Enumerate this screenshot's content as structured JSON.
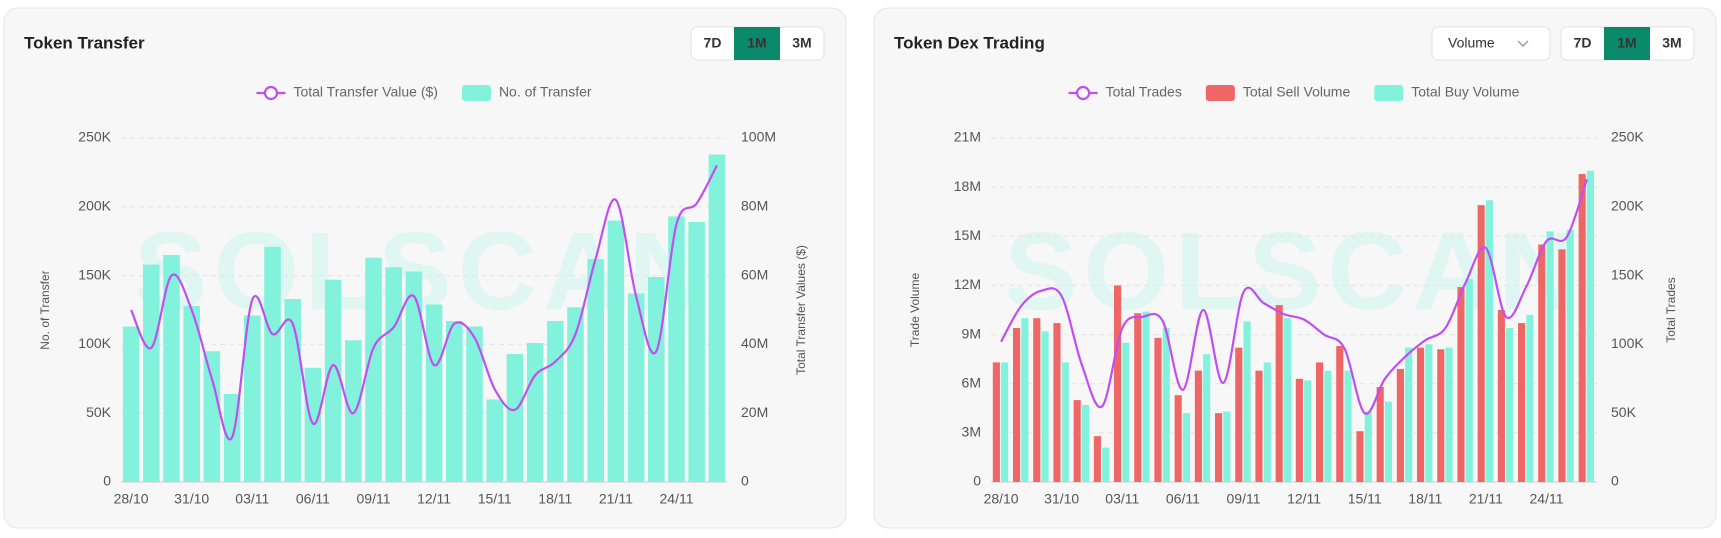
{
  "chart_data": [
    {
      "type": "bar",
      "title": "Token Transfer",
      "categories": [
        "28/10",
        null,
        null,
        "31/10",
        null,
        null,
        "03/11",
        null,
        null,
        "06/11",
        null,
        null,
        "09/11",
        null,
        null,
        "12/11",
        null,
        null,
        "15/11",
        null,
        null,
        "18/11",
        null,
        null,
        "21/11",
        null,
        null,
        "24/11",
        null,
        null
      ],
      "series": [
        {
          "name": "Total Transfer Value ($)",
          "type": "line",
          "axis": "y2",
          "color": "#c14ff0",
          "values": [
            50000000,
            39000000,
            60000000,
            50000000,
            30000000,
            13000000,
            53000000,
            43000000,
            46000000,
            17000000,
            34000000,
            20000000,
            39000000,
            45000000,
            54000000,
            34000000,
            46000000,
            42000000,
            27000000,
            21000000,
            31000000,
            35000000,
            43000000,
            65000000,
            82000000,
            54000000,
            38000000,
            75000000,
            81000000,
            92000000
          ]
        },
        {
          "name": "No. of Transfer",
          "type": "bar",
          "color": "#82f2dc",
          "values": [
            113000,
            158000,
            165000,
            128000,
            95000,
            64000,
            121000,
            171000,
            133000,
            83000,
            147000,
            103000,
            163000,
            156000,
            153000,
            129000,
            117000,
            113000,
            60000,
            93000,
            101000,
            117000,
            127000,
            162000,
            190000,
            137000,
            149000,
            193000,
            189000,
            238000
          ]
        }
      ],
      "ylabel": "No. of Transfer",
      "y2label": "Total Transfer Values ($)",
      "ylim": [
        0,
        250000
      ],
      "yticks": [
        0,
        {
          "value": 50000,
          "label": "50K"
        },
        {
          "value": 100000,
          "label": "100K"
        },
        {
          "value": 150000,
          "label": "150K"
        },
        {
          "value": 200000,
          "label": "200K"
        },
        {
          "value": 250000,
          "label": "250K"
        }
      ],
      "y2lim": [
        0,
        100000000
      ],
      "y2ticks": [
        0,
        {
          "value": 20000000,
          "label": "20M"
        },
        {
          "value": 40000000,
          "label": "40M"
        },
        {
          "value": 60000000,
          "label": "60M"
        },
        {
          "value": 80000000,
          "label": "80M"
        },
        {
          "value": 100000000,
          "label": "100M"
        }
      ],
      "grid": true,
      "legend": "top"
    },
    {
      "type": "bar",
      "title": "Token Dex Trading",
      "categories": [
        "28/10",
        null,
        null,
        "31/10",
        null,
        null,
        "03/11",
        null,
        null,
        "06/11",
        null,
        null,
        "09/11",
        null,
        null,
        "12/11",
        null,
        null,
        "15/11",
        null,
        null,
        "18/11",
        null,
        null,
        "21/11",
        null,
        null,
        "24/11",
        null,
        null
      ],
      "series": [
        {
          "name": "Total Trades",
          "type": "line",
          "axis": "y2",
          "color": "#c14ff0",
          "values": [
            102000,
            128000,
            139000,
            135000,
            85000,
            55000,
            112000,
            120000,
            117000,
            67000,
            125000,
            72000,
            138000,
            130000,
            122000,
            118000,
            107000,
            97000,
            50000,
            75000,
            91000,
            103000,
            112000,
            145000,
            170000,
            120000,
            142000,
            175000,
            178000,
            220000
          ]
        },
        {
          "name": "Total Sell Volume",
          "type": "bar",
          "color": "#ee6666",
          "values": [
            7300000,
            9400000,
            10000000,
            9700000,
            5000000,
            2800000,
            12000000,
            10300000,
            8800000,
            5300000,
            6800000,
            4200000,
            8200000,
            6800000,
            10800000,
            6300000,
            7300000,
            8300000,
            3100000,
            5800000,
            6900000,
            8200000,
            8100000,
            11900000,
            16900000,
            10500000,
            9700000,
            14500000,
            14200000,
            18800000
          ]
        },
        {
          "name": "Total Buy Volume",
          "type": "bar",
          "color": "#82f2dc",
          "values": [
            7300000,
            10000000,
            9200000,
            7300000,
            4700000,
            2100000,
            8500000,
            10400000,
            9400000,
            4200000,
            7800000,
            4300000,
            9800000,
            7300000,
            10000000,
            6200000,
            6800000,
            6800000,
            4300000,
            4900000,
            8200000,
            8400000,
            8200000,
            12400000,
            17200000,
            9400000,
            10200000,
            15300000,
            15400000,
            19000000
          ]
        }
      ],
      "ylabel": "Trade Volume",
      "y2label": "Total Trades",
      "ylim": [
        0,
        21000000
      ],
      "yticks": [
        0,
        {
          "value": 3000000,
          "label": "3M"
        },
        {
          "value": 6000000,
          "label": "6M"
        },
        {
          "value": 9000000,
          "label": "9M"
        },
        {
          "value": 12000000,
          "label": "12M"
        },
        {
          "value": 15000000,
          "label": "15M"
        },
        {
          "value": 18000000,
          "label": "18M"
        },
        {
          "value": 21000000,
          "label": "21M"
        }
      ],
      "y2lim": [
        0,
        250000
      ],
      "y2ticks": [
        0,
        {
          "value": 50000,
          "label": "50K"
        },
        {
          "value": 100000,
          "label": "100K"
        },
        {
          "value": 150000,
          "label": "150K"
        },
        {
          "value": 200000,
          "label": "200K"
        },
        {
          "value": 250000,
          "label": "250K"
        }
      ],
      "grid": true,
      "legend": "top"
    }
  ],
  "controls": [
    {
      "buttons": [
        "7D",
        "1M",
        "3M"
      ],
      "active": 1
    },
    {
      "dropdown": "Volume",
      "buttons": [
        "7D",
        "1M",
        "3M"
      ],
      "active": 1
    }
  ],
  "watermark": "SOLSCAN"
}
